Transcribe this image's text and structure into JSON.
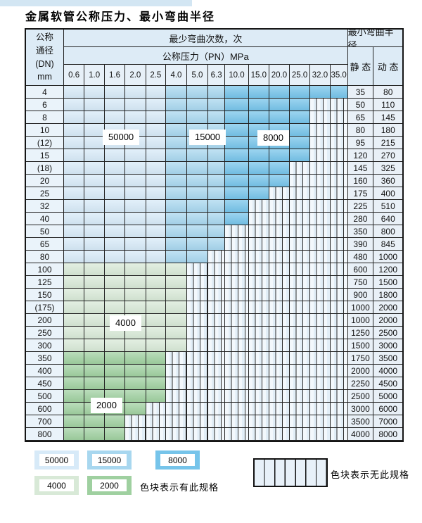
{
  "title": "金属软管公称压力、最小弯曲半径",
  "colors": {
    "blue_light": "#d7eaf8",
    "blue_mid": "#a8d7ef",
    "blue_dark": "#76c4ea",
    "green_light": "#d8e9d7",
    "green_dark": "#9fd0a0",
    "hatch_fill": "#eef5fb",
    "grid_line": "#222222",
    "top_strip": "#d3e6f3"
  },
  "table": {
    "dn_header_lines": [
      "公称",
      "通径",
      "(DN)",
      "mm"
    ],
    "cycles_header": "最少弯曲次数，次",
    "pressure_header": "公称压力（PN）MPa",
    "radius_header": "最小弯曲半径",
    "static_label": "静 态",
    "dynamic_label": "动 态",
    "pressures": [
      "0.6",
      "1.0",
      "1.6",
      "2.0",
      "2.5",
      "4.0",
      "5.0",
      "6.3",
      "10.0",
      "15.0",
      "20.0",
      "25.0",
      "32.0",
      "35.0"
    ],
    "blue_bands": [
      {
        "cycles": "50000",
        "col_start": 0,
        "col_end": 4
      },
      {
        "cycles": "15000",
        "col_start": 5,
        "col_end": 7
      },
      {
        "cycles": "8000",
        "col_start": 8,
        "col_end": 13
      }
    ],
    "rows": [
      {
        "dn": "4",
        "band": "blue",
        "colored": 14,
        "static": "35",
        "dynamic": "80"
      },
      {
        "dn": "6",
        "band": "blue",
        "colored": 12,
        "static": "50",
        "dynamic": "110"
      },
      {
        "dn": "8",
        "band": "blue",
        "colored": 12,
        "static": "65",
        "dynamic": "145"
      },
      {
        "dn": "10",
        "band": "blue",
        "colored": 12,
        "static": "80",
        "dynamic": "180"
      },
      {
        "dn": "(12)",
        "band": "blue",
        "colored": 12,
        "static": "95",
        "dynamic": "215"
      },
      {
        "dn": "15",
        "band": "blue",
        "colored": 12,
        "static": "120",
        "dynamic": "270"
      },
      {
        "dn": "(18)",
        "band": "blue",
        "colored": 11,
        "static": "145",
        "dynamic": "325"
      },
      {
        "dn": "20",
        "band": "blue",
        "colored": 11,
        "static": "160",
        "dynamic": "360"
      },
      {
        "dn": "25",
        "band": "blue",
        "colored": 10,
        "static": "175",
        "dynamic": "400"
      },
      {
        "dn": "32",
        "band": "blue",
        "colored": 9,
        "static": "225",
        "dynamic": "510"
      },
      {
        "dn": "40",
        "band": "blue",
        "colored": 9,
        "static": "280",
        "dynamic": "640"
      },
      {
        "dn": "50",
        "band": "blue",
        "colored": 8,
        "static": "350",
        "dynamic": "800"
      },
      {
        "dn": "65",
        "band": "blue",
        "colored": 8,
        "static": "390",
        "dynamic": "845"
      },
      {
        "dn": "80",
        "band": "blue",
        "colored": 7,
        "static": "480",
        "dynamic": "1000"
      },
      {
        "dn": "100",
        "band": "green4000",
        "colored": 6,
        "static": "600",
        "dynamic": "1200"
      },
      {
        "dn": "125",
        "band": "green4000",
        "colored": 6,
        "static": "750",
        "dynamic": "1500"
      },
      {
        "dn": "150",
        "band": "green4000",
        "colored": 6,
        "static": "900",
        "dynamic": "1800"
      },
      {
        "dn": "(175)",
        "band": "green4000",
        "colored": 6,
        "static": "1000",
        "dynamic": "2000"
      },
      {
        "dn": "200",
        "band": "green4000",
        "colored": 6,
        "static": "1000",
        "dynamic": "2000"
      },
      {
        "dn": "250",
        "band": "green4000",
        "colored": 6,
        "static": "1250",
        "dynamic": "2500"
      },
      {
        "dn": "300",
        "band": "green4000",
        "colored": 6,
        "static": "1500",
        "dynamic": "3000"
      },
      {
        "dn": "350",
        "band": "green2000",
        "colored": 5,
        "static": "1750",
        "dynamic": "3500"
      },
      {
        "dn": "400",
        "band": "green2000",
        "colored": 5,
        "static": "2000",
        "dynamic": "4000"
      },
      {
        "dn": "450",
        "band": "green2000",
        "colored": 5,
        "static": "2250",
        "dynamic": "4500"
      },
      {
        "dn": "500",
        "band": "green2000",
        "colored": 5,
        "static": "2500",
        "dynamic": "5000"
      },
      {
        "dn": "600",
        "band": "green2000",
        "colored": 4,
        "static": "3000",
        "dynamic": "6000"
      },
      {
        "dn": "700",
        "band": "green2000",
        "colored": 3,
        "static": "3500",
        "dynamic": "7000"
      },
      {
        "dn": "800",
        "band": "green2000",
        "colored": 3,
        "static": "4000",
        "dynamic": "8000"
      }
    ]
  },
  "overlays": [
    {
      "text": "50000"
    },
    {
      "text": "15000"
    },
    {
      "text": "8000"
    },
    {
      "text": "4000"
    },
    {
      "text": "2000"
    }
  ],
  "legend": {
    "items": [
      {
        "label": "50000",
        "color_key": "blue_light"
      },
      {
        "label": "15000",
        "color_key": "blue_mid"
      },
      {
        "label": "8000",
        "color_key": "blue_dark"
      },
      {
        "label": "4000",
        "color_key": "green_light"
      },
      {
        "label": "2000",
        "color_key": "green_dark"
      }
    ],
    "has_spec_note": "色块表示有此规格",
    "no_spec_note": "色块表示无此规格"
  }
}
